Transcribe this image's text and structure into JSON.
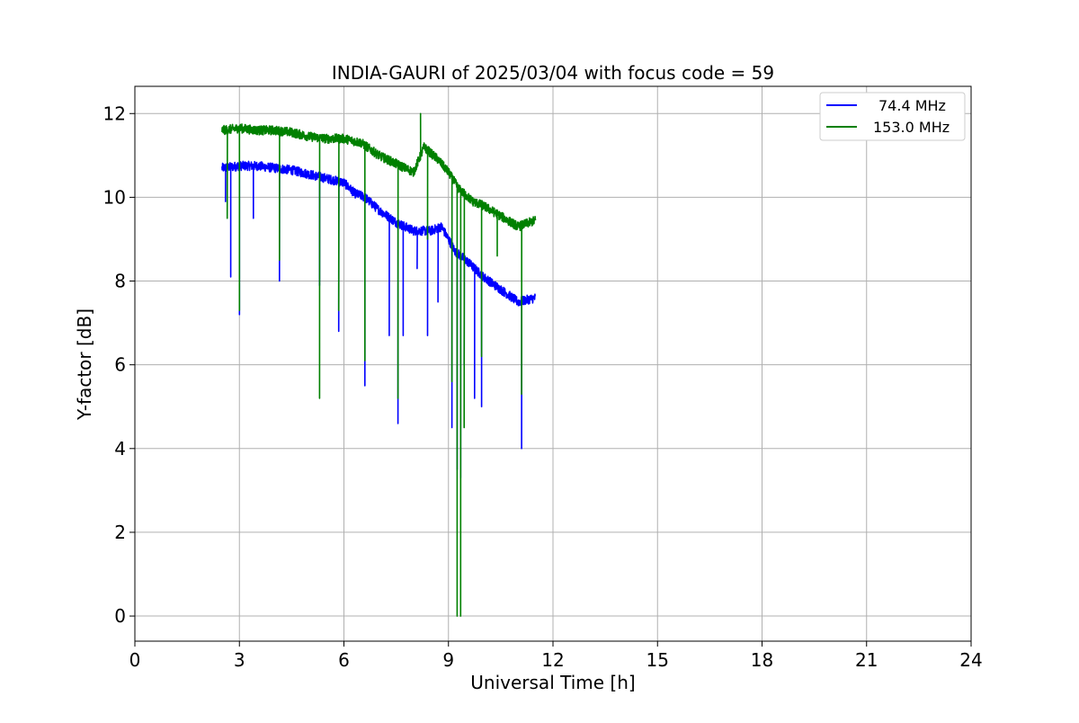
{
  "chart_data": {
    "type": "line",
    "title": "INDIA-GAURI of 2025/03/04 with focus code = 59",
    "xlabel": "Universal Time [h]",
    "ylabel": "Y-factor [dB]",
    "xlim": [
      0,
      24
    ],
    "ylim": [
      -0.6,
      12.65
    ],
    "xticks": [
      0,
      3,
      6,
      9,
      12,
      15,
      18,
      21,
      24
    ],
    "yticks": [
      0,
      2,
      4,
      6,
      8,
      10,
      12
    ],
    "xtick_labels": [
      "0",
      "3",
      "6",
      "9",
      "12",
      "15",
      "18",
      "21",
      "24"
    ],
    "ytick_labels": [
      "0",
      "2",
      "4",
      "6",
      "8",
      "10",
      "12"
    ],
    "grid": true,
    "legend_position": "top-right",
    "series": [
      {
        "name": "74.4 MHz",
        "color": "#0000ff",
        "points": [
          [
            2.5,
            10.7
          ],
          [
            3.0,
            10.75
          ],
          [
            3.5,
            10.75
          ],
          [
            4.0,
            10.7
          ],
          [
            4.5,
            10.65
          ],
          [
            5.0,
            10.55
          ],
          [
            5.5,
            10.45
          ],
          [
            6.0,
            10.35
          ],
          [
            6.3,
            10.1
          ],
          [
            6.6,
            10.0
          ],
          [
            7.0,
            9.7
          ],
          [
            7.5,
            9.4
          ],
          [
            8.0,
            9.2
          ],
          [
            8.5,
            9.2
          ],
          [
            8.8,
            9.3
          ],
          [
            9.0,
            9.0
          ],
          [
            9.2,
            8.7
          ],
          [
            9.5,
            8.5
          ],
          [
            10.0,
            8.1
          ],
          [
            10.5,
            7.8
          ],
          [
            11.0,
            7.5
          ],
          [
            11.5,
            7.6
          ]
        ],
        "dips": [
          [
            2.6,
            9.9
          ],
          [
            2.75,
            8.1
          ],
          [
            3.0,
            7.2
          ],
          [
            3.4,
            9.5
          ],
          [
            4.15,
            8.0
          ],
          [
            5.3,
            7.9
          ],
          [
            5.85,
            6.8
          ],
          [
            6.6,
            5.5
          ],
          [
            7.3,
            6.7
          ],
          [
            7.55,
            4.6
          ],
          [
            7.7,
            6.7
          ],
          [
            8.1,
            8.3
          ],
          [
            8.4,
            6.7
          ],
          [
            8.7,
            7.5
          ],
          [
            9.1,
            4.5
          ],
          [
            9.25,
            3.5
          ],
          [
            9.35,
            3.3
          ],
          [
            9.45,
            6.0
          ],
          [
            9.75,
            5.2
          ],
          [
            9.95,
            5.0
          ],
          [
            11.1,
            4.0
          ]
        ]
      },
      {
        "name": "153.0 MHz",
        "color": "#008000",
        "points": [
          [
            2.5,
            11.6
          ],
          [
            3.0,
            11.65
          ],
          [
            3.5,
            11.6
          ],
          [
            4.0,
            11.6
          ],
          [
            4.5,
            11.55
          ],
          [
            5.0,
            11.45
          ],
          [
            5.5,
            11.4
          ],
          [
            6.0,
            11.4
          ],
          [
            6.5,
            11.3
          ],
          [
            7.0,
            11.0
          ],
          [
            7.5,
            10.8
          ],
          [
            8.0,
            10.6
          ],
          [
            8.3,
            11.2
          ],
          [
            8.7,
            10.9
          ],
          [
            9.0,
            10.6
          ],
          [
            9.3,
            10.2
          ],
          [
            9.7,
            9.9
          ],
          [
            10.0,
            9.8
          ],
          [
            10.5,
            9.55
          ],
          [
            11.0,
            9.3
          ],
          [
            11.5,
            9.45
          ]
        ],
        "dips": [
          [
            2.65,
            9.5
          ],
          [
            3.0,
            7.3
          ],
          [
            4.15,
            8.5
          ],
          [
            5.3,
            5.2
          ],
          [
            5.85,
            7.3
          ],
          [
            6.6,
            6.1
          ],
          [
            7.55,
            5.2
          ],
          [
            8.2,
            12.0
          ],
          [
            8.4,
            9.0
          ],
          [
            9.1,
            5.6
          ],
          [
            9.25,
            0.0
          ],
          [
            9.35,
            0.0
          ],
          [
            9.45,
            4.5
          ],
          [
            9.95,
            6.2
          ],
          [
            10.4,
            8.6
          ],
          [
            11.1,
            5.3
          ]
        ]
      }
    ]
  }
}
